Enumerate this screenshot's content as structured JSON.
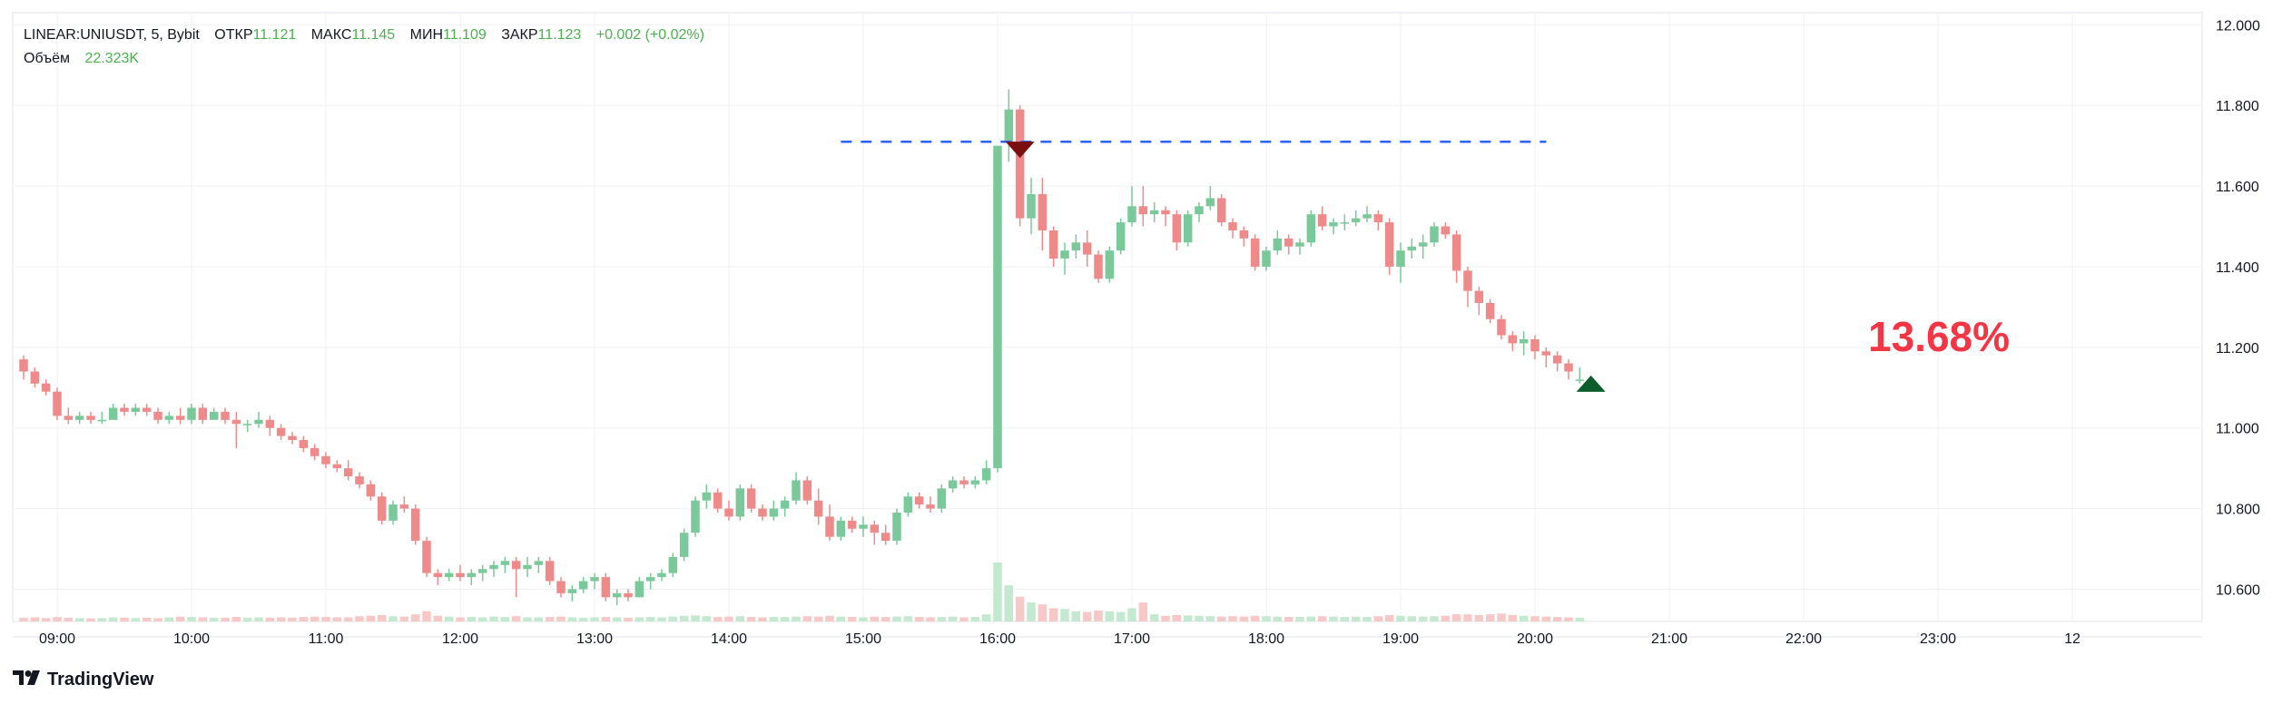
{
  "header": {
    "symbol": "LINEAR:UNIUSDT, 5, Bybit",
    "open_label": "ОТКР",
    "open_value": "11.121",
    "high_label": "МАКС",
    "high_value": "11.145",
    "low_label": "МИН",
    "low_value": "11.109",
    "close_label": "ЗАКР",
    "close_value": "11.123",
    "change": "+0.002 (+0.02%)",
    "volume_label": "Объём",
    "volume_value": "22.323K"
  },
  "annotation": {
    "percent_text": "13.68%",
    "color": "#f23645"
  },
  "brand": {
    "name": "TradingView",
    "icon": "tradingview-logo-icon"
  },
  "colors": {
    "up": "#26a69a",
    "down": "#ef5350",
    "up_candle": "#7bc99a",
    "down_candle": "#ee8a8a",
    "level_line": "#2962ff",
    "sell_marker": "#7a0f0f",
    "buy_marker": "#0b5e2a"
  },
  "chart_data": {
    "type": "candlestick",
    "x_tick_labels": [
      "09:00",
      "10:00",
      "11:00",
      "12:00",
      "13:00",
      "14:00",
      "15:00",
      "16:00",
      "17:00",
      "18:00",
      "19:00",
      "20:00",
      "21:00",
      "22:00",
      "23:00",
      "12"
    ],
    "y_tick_labels": [
      "12.000",
      "11.800",
      "11.600",
      "11.400",
      "11.200",
      "11.000",
      "10.800",
      "10.600"
    ],
    "ylim": [
      10.52,
      12.03
    ],
    "start_time": "08:45",
    "interval_minutes": 5,
    "horizontal_level": {
      "value": 11.71,
      "from": "14:50",
      "to": "20:05",
      "style": "dashed"
    },
    "markers": [
      {
        "type": "sell",
        "time": "16:10",
        "value": 11.69
      },
      {
        "type": "buy",
        "time": "20:25",
        "value": 11.11
      }
    ],
    "ohlcv": [
      [
        11.17,
        11.18,
        11.12,
        11.14,
        5
      ],
      [
        11.14,
        11.15,
        11.1,
        11.11,
        6
      ],
      [
        11.11,
        11.12,
        11.08,
        11.09,
        4
      ],
      [
        11.09,
        11.1,
        11.02,
        11.03,
        7
      ],
      [
        11.03,
        11.05,
        11.01,
        11.02,
        5
      ],
      [
        11.02,
        11.04,
        11.01,
        11.03,
        4
      ],
      [
        11.03,
        11.04,
        11.01,
        11.02,
        3
      ],
      [
        11.02,
        11.04,
        11.01,
        11.02,
        4
      ],
      [
        11.02,
        11.06,
        11.02,
        11.05,
        6
      ],
      [
        11.05,
        11.06,
        11.03,
        11.04,
        5
      ],
      [
        11.04,
        11.06,
        11.03,
        11.05,
        4
      ],
      [
        11.05,
        11.06,
        11.03,
        11.04,
        5
      ],
      [
        11.04,
        11.05,
        11.01,
        11.02,
        4
      ],
      [
        11.02,
        11.04,
        11.01,
        11.03,
        6
      ],
      [
        11.03,
        11.05,
        11.01,
        11.02,
        8
      ],
      [
        11.02,
        11.06,
        11.01,
        11.05,
        7
      ],
      [
        11.05,
        11.06,
        11.01,
        11.02,
        6
      ],
      [
        11.02,
        11.05,
        11.02,
        11.04,
        5
      ],
      [
        11.04,
        11.05,
        11.01,
        11.02,
        5
      ],
      [
        11.02,
        11.04,
        10.95,
        11.01,
        7
      ],
      [
        11.01,
        11.02,
        10.99,
        11.01,
        5
      ],
      [
        11.01,
        11.04,
        11.0,
        11.02,
        6
      ],
      [
        11.02,
        11.03,
        10.98,
        11.0,
        5
      ],
      [
        11.0,
        11.01,
        10.97,
        10.98,
        6
      ],
      [
        10.98,
        10.99,
        10.96,
        10.97,
        5
      ],
      [
        10.97,
        10.98,
        10.94,
        10.95,
        7
      ],
      [
        10.95,
        10.96,
        10.92,
        10.93,
        8
      ],
      [
        10.93,
        10.94,
        10.9,
        10.91,
        7
      ],
      [
        10.91,
        10.92,
        10.89,
        10.9,
        6
      ],
      [
        10.9,
        10.92,
        10.87,
        10.88,
        6
      ],
      [
        10.88,
        10.89,
        10.85,
        10.86,
        9
      ],
      [
        10.86,
        10.87,
        10.82,
        10.83,
        10
      ],
      [
        10.83,
        10.84,
        10.76,
        10.77,
        12
      ],
      [
        10.77,
        10.82,
        10.76,
        10.81,
        9
      ],
      [
        10.81,
        10.83,
        10.79,
        10.8,
        8
      ],
      [
        10.8,
        10.81,
        10.71,
        10.72,
        14
      ],
      [
        10.72,
        10.73,
        10.63,
        10.64,
        22
      ],
      [
        10.64,
        10.65,
        10.61,
        10.63,
        10
      ],
      [
        10.63,
        10.65,
        10.62,
        10.64,
        8
      ],
      [
        10.64,
        10.66,
        10.62,
        10.63,
        6
      ],
      [
        10.63,
        10.65,
        10.61,
        10.64,
        7
      ],
      [
        10.64,
        10.66,
        10.62,
        10.65,
        6
      ],
      [
        10.65,
        10.67,
        10.63,
        10.66,
        8
      ],
      [
        10.66,
        10.68,
        10.64,
        10.67,
        7
      ],
      [
        10.67,
        10.68,
        10.58,
        10.65,
        9
      ],
      [
        10.65,
        10.68,
        10.63,
        10.66,
        6
      ],
      [
        10.66,
        10.68,
        10.64,
        10.67,
        6
      ],
      [
        10.67,
        10.68,
        10.61,
        10.62,
        7
      ],
      [
        10.62,
        10.63,
        10.58,
        10.59,
        8
      ],
      [
        10.59,
        10.61,
        10.57,
        10.6,
        6
      ],
      [
        10.6,
        10.63,
        10.59,
        10.62,
        5
      ],
      [
        10.62,
        10.64,
        10.6,
        10.63,
        6
      ],
      [
        10.63,
        10.64,
        10.57,
        10.58,
        7
      ],
      [
        10.58,
        10.6,
        10.56,
        10.59,
        6
      ],
      [
        10.59,
        10.6,
        10.57,
        10.58,
        5
      ],
      [
        10.58,
        10.63,
        10.58,
        10.62,
        6
      ],
      [
        10.62,
        10.64,
        10.6,
        10.63,
        7
      ],
      [
        10.63,
        10.65,
        10.62,
        10.64,
        6
      ],
      [
        10.64,
        10.69,
        10.63,
        10.68,
        8
      ],
      [
        10.68,
        10.75,
        10.67,
        10.74,
        10
      ],
      [
        10.74,
        10.83,
        10.73,
        10.82,
        11
      ],
      [
        10.82,
        10.86,
        10.8,
        10.84,
        9
      ],
      [
        10.84,
        10.85,
        10.79,
        10.8,
        7
      ],
      [
        10.8,
        10.82,
        10.77,
        10.78,
        8
      ],
      [
        10.78,
        10.86,
        10.77,
        10.85,
        9
      ],
      [
        10.85,
        10.86,
        10.79,
        10.8,
        7
      ],
      [
        10.8,
        10.81,
        10.77,
        10.78,
        6
      ],
      [
        10.78,
        10.82,
        10.77,
        10.8,
        7
      ],
      [
        10.8,
        10.83,
        10.78,
        10.82,
        7
      ],
      [
        10.82,
        10.89,
        10.81,
        10.87,
        8
      ],
      [
        10.87,
        10.88,
        10.81,
        10.82,
        9
      ],
      [
        10.82,
        10.85,
        10.76,
        10.78,
        8
      ],
      [
        10.78,
        10.81,
        10.72,
        10.73,
        10
      ],
      [
        10.73,
        10.78,
        10.72,
        10.77,
        8
      ],
      [
        10.77,
        10.78,
        10.74,
        10.75,
        7
      ],
      [
        10.75,
        10.78,
        10.73,
        10.76,
        6
      ],
      [
        10.76,
        10.77,
        10.71,
        10.74,
        8
      ],
      [
        10.74,
        10.76,
        10.71,
        10.72,
        7
      ],
      [
        10.72,
        10.8,
        10.71,
        10.79,
        8
      ],
      [
        10.79,
        10.84,
        10.78,
        10.83,
        9
      ],
      [
        10.83,
        10.84,
        10.8,
        10.81,
        7
      ],
      [
        10.81,
        10.83,
        10.79,
        10.8,
        6
      ],
      [
        10.8,
        10.86,
        10.79,
        10.85,
        7
      ],
      [
        10.85,
        10.88,
        10.84,
        10.87,
        8
      ],
      [
        10.87,
        10.88,
        10.85,
        10.86,
        6
      ],
      [
        10.86,
        10.88,
        10.85,
        10.87,
        7
      ],
      [
        10.87,
        10.92,
        10.86,
        10.9,
        14
      ],
      [
        10.9,
        11.7,
        10.89,
        11.7,
        150
      ],
      [
        11.71,
        11.84,
        11.66,
        11.79,
        90
      ],
      [
        11.79,
        11.8,
        11.5,
        11.52,
        60
      ],
      [
        11.52,
        11.62,
        11.48,
        11.58,
        45
      ],
      [
        11.58,
        11.62,
        11.44,
        11.49,
        40
      ],
      [
        11.49,
        11.5,
        11.4,
        11.42,
        30
      ],
      [
        11.42,
        11.46,
        11.38,
        11.44,
        28
      ],
      [
        11.44,
        11.48,
        11.42,
        11.46,
        22
      ],
      [
        11.46,
        11.49,
        11.4,
        11.43,
        20
      ],
      [
        11.43,
        11.44,
        11.36,
        11.37,
        24
      ],
      [
        11.37,
        11.45,
        11.36,
        11.44,
        22
      ],
      [
        11.44,
        11.52,
        11.43,
        11.51,
        20
      ],
      [
        11.51,
        11.6,
        11.5,
        11.55,
        30
      ],
      [
        11.55,
        11.6,
        11.5,
        11.53,
        45
      ],
      [
        11.53,
        11.56,
        11.51,
        11.54,
        14
      ],
      [
        11.54,
        11.55,
        11.5,
        11.53,
        10
      ],
      [
        11.53,
        11.54,
        11.44,
        11.46,
        12
      ],
      [
        11.46,
        11.54,
        11.45,
        11.53,
        11
      ],
      [
        11.53,
        11.56,
        11.51,
        11.55,
        10
      ],
      [
        11.55,
        11.6,
        11.54,
        11.57,
        9
      ],
      [
        11.57,
        11.58,
        11.5,
        11.51,
        8
      ],
      [
        11.51,
        11.52,
        11.47,
        11.49,
        9
      ],
      [
        11.49,
        11.5,
        11.45,
        11.47,
        8
      ],
      [
        11.47,
        11.48,
        11.39,
        11.4,
        10
      ],
      [
        11.4,
        11.45,
        11.39,
        11.44,
        9
      ],
      [
        11.44,
        11.49,
        11.43,
        11.47,
        8
      ],
      [
        11.47,
        11.48,
        11.43,
        11.45,
        7
      ],
      [
        11.45,
        11.47,
        11.43,
        11.46,
        7
      ],
      [
        11.46,
        11.54,
        11.45,
        11.53,
        8
      ],
      [
        11.53,
        11.55,
        11.49,
        11.5,
        9
      ],
      [
        11.5,
        11.52,
        11.48,
        11.51,
        8
      ],
      [
        11.51,
        11.53,
        11.49,
        11.51,
        7
      ],
      [
        11.51,
        11.54,
        11.5,
        11.52,
        8
      ],
      [
        11.52,
        11.55,
        11.51,
        11.53,
        7
      ],
      [
        11.53,
        11.54,
        11.49,
        11.51,
        9
      ],
      [
        11.51,
        11.52,
        11.38,
        11.4,
        12
      ],
      [
        11.4,
        11.46,
        11.36,
        11.44,
        10
      ],
      [
        11.44,
        11.47,
        11.42,
        11.45,
        9
      ],
      [
        11.45,
        11.48,
        11.42,
        11.46,
        8
      ],
      [
        11.46,
        11.51,
        11.45,
        11.5,
        9
      ],
      [
        11.5,
        11.51,
        11.47,
        11.48,
        10
      ],
      [
        11.48,
        11.49,
        11.36,
        11.39,
        14
      ],
      [
        11.39,
        11.4,
        11.3,
        11.34,
        14
      ],
      [
        11.34,
        11.35,
        11.28,
        11.31,
        12
      ],
      [
        11.31,
        11.32,
        11.26,
        11.27,
        14
      ],
      [
        11.27,
        11.28,
        11.22,
        11.23,
        16
      ],
      [
        11.23,
        11.24,
        11.19,
        11.21,
        12
      ],
      [
        11.21,
        11.24,
        11.18,
        11.22,
        10
      ],
      [
        11.22,
        11.23,
        11.17,
        11.19,
        9
      ],
      [
        11.19,
        11.2,
        11.15,
        11.18,
        8
      ],
      [
        11.18,
        11.19,
        11.14,
        11.16,
        7
      ],
      [
        11.16,
        11.17,
        11.12,
        11.14,
        6
      ],
      [
        11.12,
        11.15,
        11.11,
        11.12,
        5
      ]
    ]
  }
}
